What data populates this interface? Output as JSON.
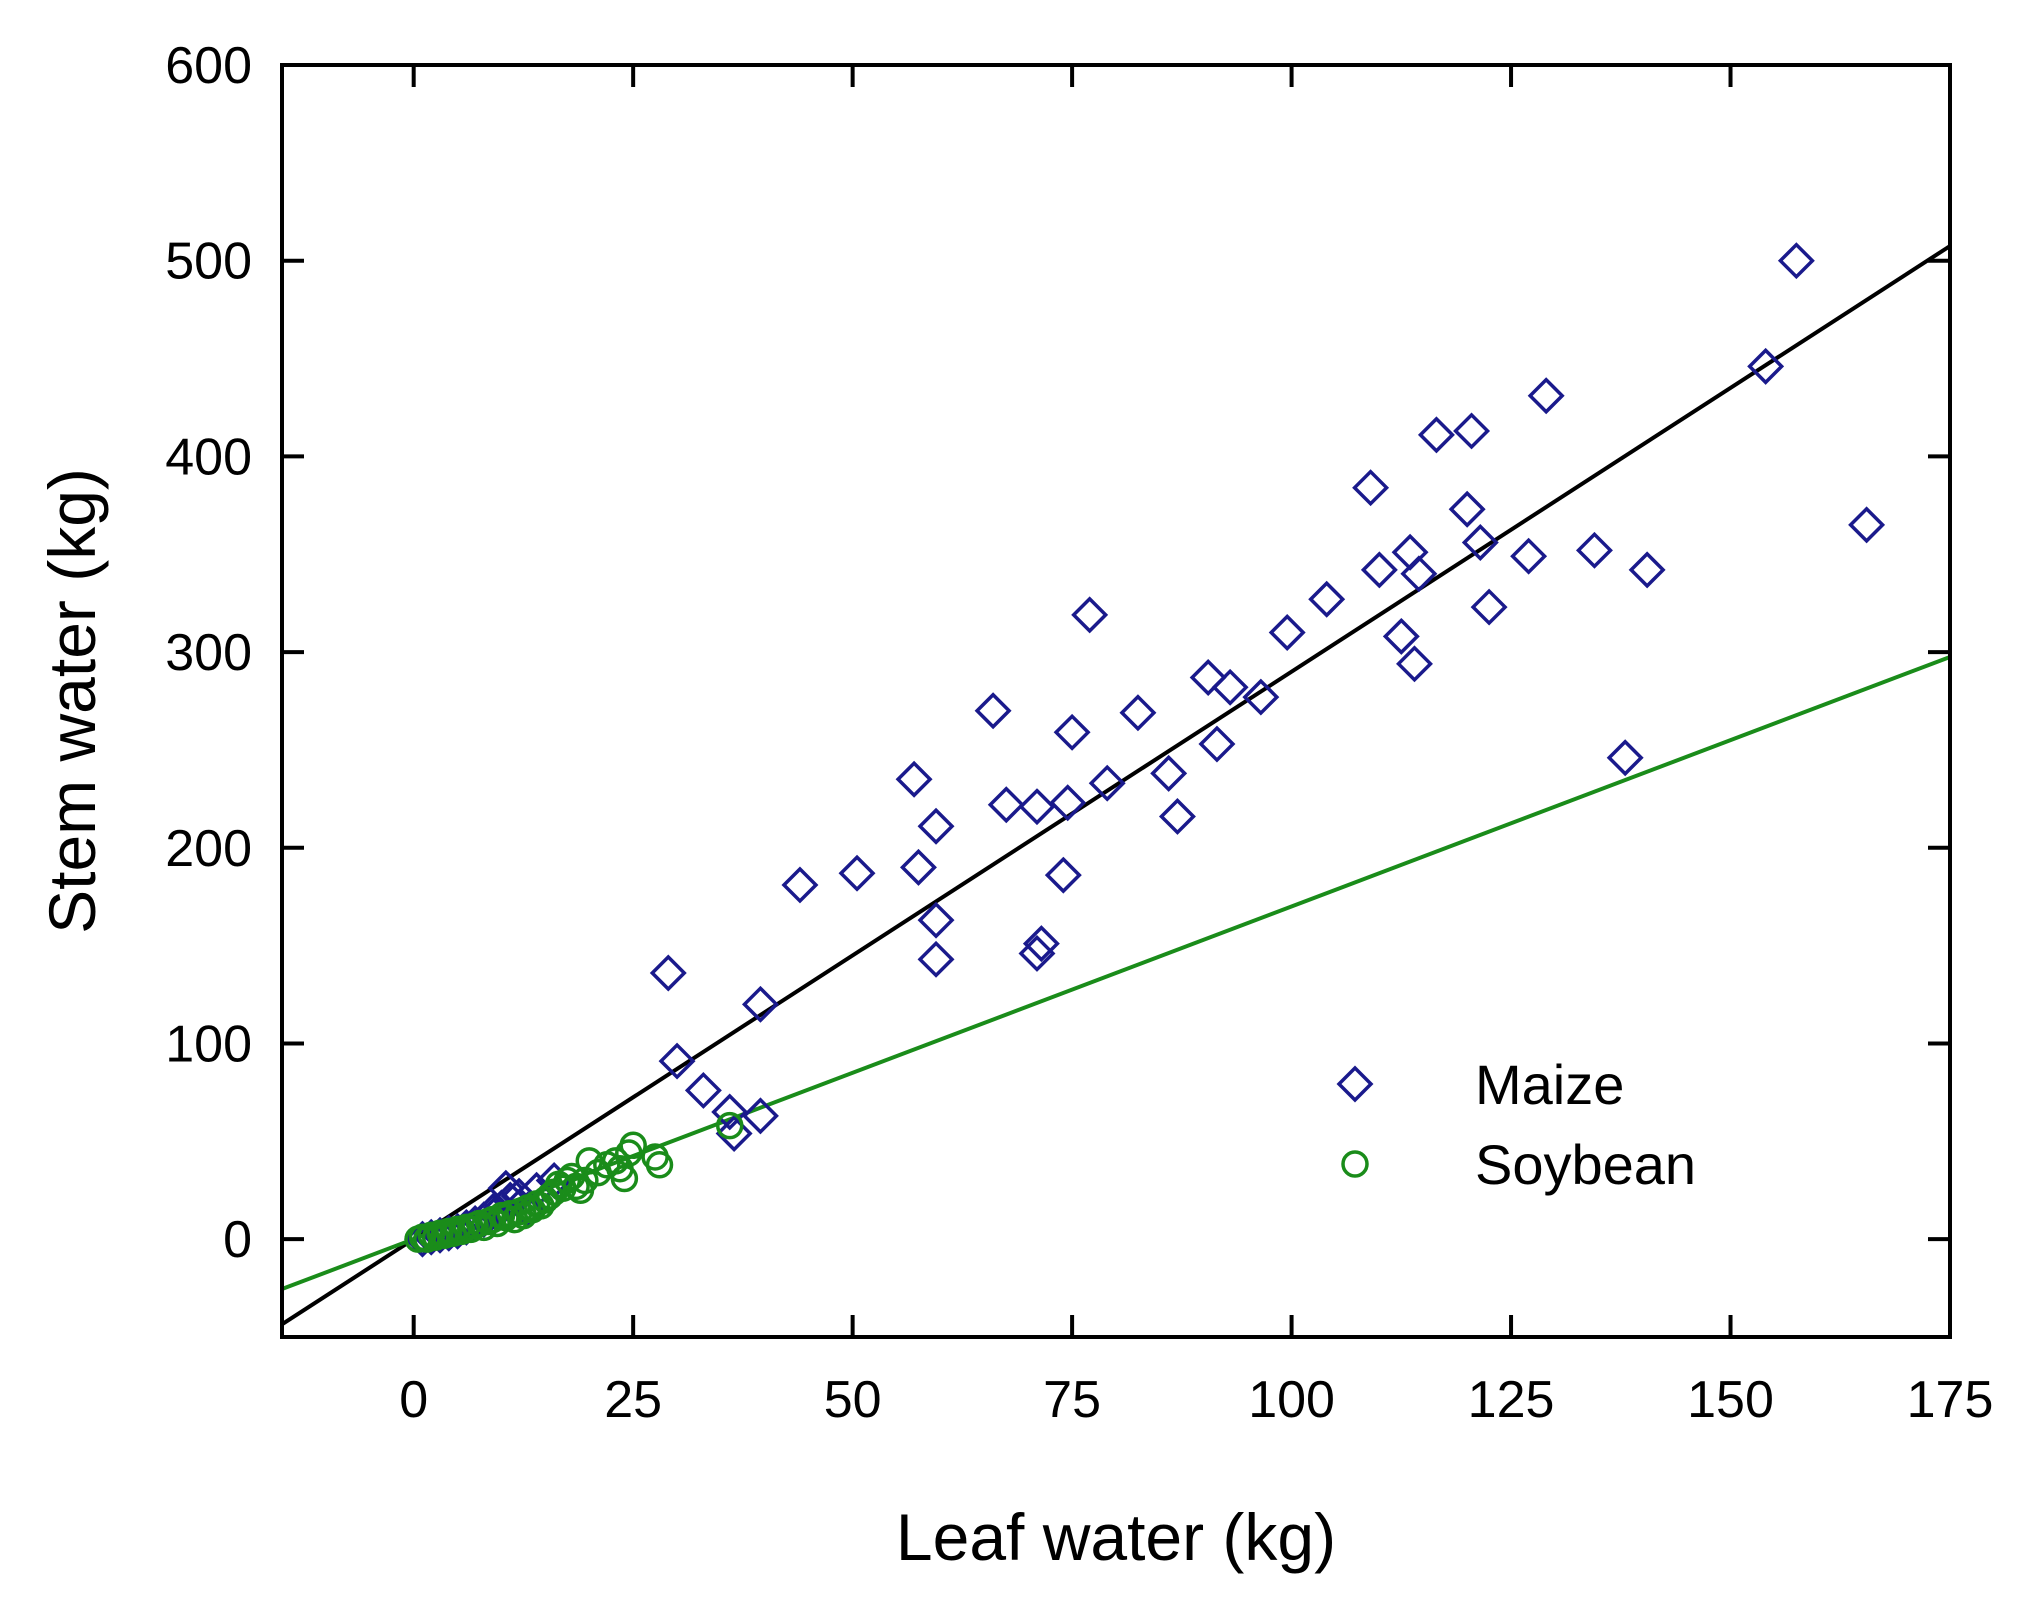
{
  "chart_data": {
    "type": "scatter",
    "xlabel": "Leaf water (kg)",
    "ylabel": "Stem water (kg)",
    "xlim": [
      -15,
      175
    ],
    "ylim": [
      -50,
      600
    ],
    "xticks": [
      0,
      25,
      50,
      75,
      100,
      125,
      150,
      175
    ],
    "yticks": [
      0,
      100,
      200,
      300,
      400,
      500,
      600
    ],
    "legend_position": "lower-right",
    "series": [
      {
        "name": "Maize",
        "marker": "diamond",
        "color": "#1a1a8c",
        "points": [
          [
            1,
            0
          ],
          [
            2,
            1
          ],
          [
            3,
            2
          ],
          [
            4,
            3
          ],
          [
            5,
            4
          ],
          [
            6,
            6
          ],
          [
            7,
            8
          ],
          [
            8,
            10
          ],
          [
            9,
            14
          ],
          [
            10,
            16
          ],
          [
            10.5,
            26
          ],
          [
            11,
            20
          ],
          [
            12,
            22
          ],
          [
            13,
            15
          ],
          [
            14,
            25
          ],
          [
            16,
            30
          ],
          [
            29,
            136
          ],
          [
            30,
            91
          ],
          [
            33,
            76
          ],
          [
            36,
            65
          ],
          [
            36.5,
            54
          ],
          [
            39.5,
            120
          ],
          [
            39.5,
            63
          ],
          [
            44,
            181
          ],
          [
            50.5,
            187
          ],
          [
            57,
            235
          ],
          [
            57.5,
            190
          ],
          [
            59.5,
            211
          ],
          [
            59.5,
            163
          ],
          [
            59.5,
            143
          ],
          [
            66,
            270
          ],
          [
            67.5,
            222
          ],
          [
            71,
            221
          ],
          [
            71,
            146
          ],
          [
            71.5,
            151
          ],
          [
            74,
            186
          ],
          [
            74.5,
            223
          ],
          [
            75,
            259
          ],
          [
            77,
            319
          ],
          [
            79,
            233
          ],
          [
            82.5,
            269
          ],
          [
            86,
            238
          ],
          [
            87,
            216
          ],
          [
            90.5,
            287
          ],
          [
            91.5,
            253
          ],
          [
            93,
            282
          ],
          [
            96.5,
            277
          ],
          [
            99.5,
            310
          ],
          [
            104,
            327
          ],
          [
            109,
            384
          ],
          [
            110,
            342
          ],
          [
            112.5,
            308
          ],
          [
            113.5,
            351
          ],
          [
            114,
            294
          ],
          [
            114.5,
            340
          ],
          [
            116.5,
            411
          ],
          [
            120,
            373
          ],
          [
            120.5,
            413
          ],
          [
            121.5,
            356
          ],
          [
            122.5,
            323
          ],
          [
            127,
            349
          ],
          [
            129,
            431
          ],
          [
            134.5,
            352
          ],
          [
            138,
            246
          ],
          [
            140.5,
            342
          ],
          [
            154,
            446
          ],
          [
            157.5,
            500
          ],
          [
            165.5,
            365
          ]
        ],
        "fit": {
          "slope": 2.9,
          "intercept": 0
        }
      },
      {
        "name": "Soybean",
        "marker": "circle",
        "color": "#1a8c1a",
        "points": [
          [
            0.5,
            0
          ],
          [
            1,
            1
          ],
          [
            1.5,
            0
          ],
          [
            2,
            2
          ],
          [
            2.5,
            1
          ],
          [
            3,
            3
          ],
          [
            3.5,
            2
          ],
          [
            4,
            4
          ],
          [
            4.5,
            3
          ],
          [
            5,
            5
          ],
          [
            5.5,
            4
          ],
          [
            6,
            6
          ],
          [
            6.5,
            5
          ],
          [
            7,
            7
          ],
          [
            7.5,
            8
          ],
          [
            8,
            6
          ],
          [
            8.5,
            9
          ],
          [
            9,
            10
          ],
          [
            9.5,
            8
          ],
          [
            10,
            12
          ],
          [
            10.5,
            11
          ],
          [
            11,
            13
          ],
          [
            11.5,
            10
          ],
          [
            12,
            14
          ],
          [
            12.5,
            12
          ],
          [
            13,
            16
          ],
          [
            13.5,
            15
          ],
          [
            14,
            18
          ],
          [
            14.5,
            17
          ],
          [
            15,
            20
          ],
          [
            15.5,
            22
          ],
          [
            16,
            24
          ],
          [
            16.5,
            28
          ],
          [
            17,
            26
          ],
          [
            17.5,
            30
          ],
          [
            18,
            32
          ],
          [
            18.5,
            27
          ],
          [
            19,
            25
          ],
          [
            19.5,
            30
          ],
          [
            20,
            40
          ],
          [
            21,
            34
          ],
          [
            22,
            38
          ],
          [
            23,
            40
          ],
          [
            23.5,
            36
          ],
          [
            24,
            31
          ],
          [
            24.5,
            44
          ],
          [
            25,
            48
          ],
          [
            27.5,
            42
          ],
          [
            28,
            38
          ],
          [
            36,
            58
          ]
        ],
        "fit": {
          "slope": 1.7,
          "intercept": 0
        }
      }
    ]
  }
}
